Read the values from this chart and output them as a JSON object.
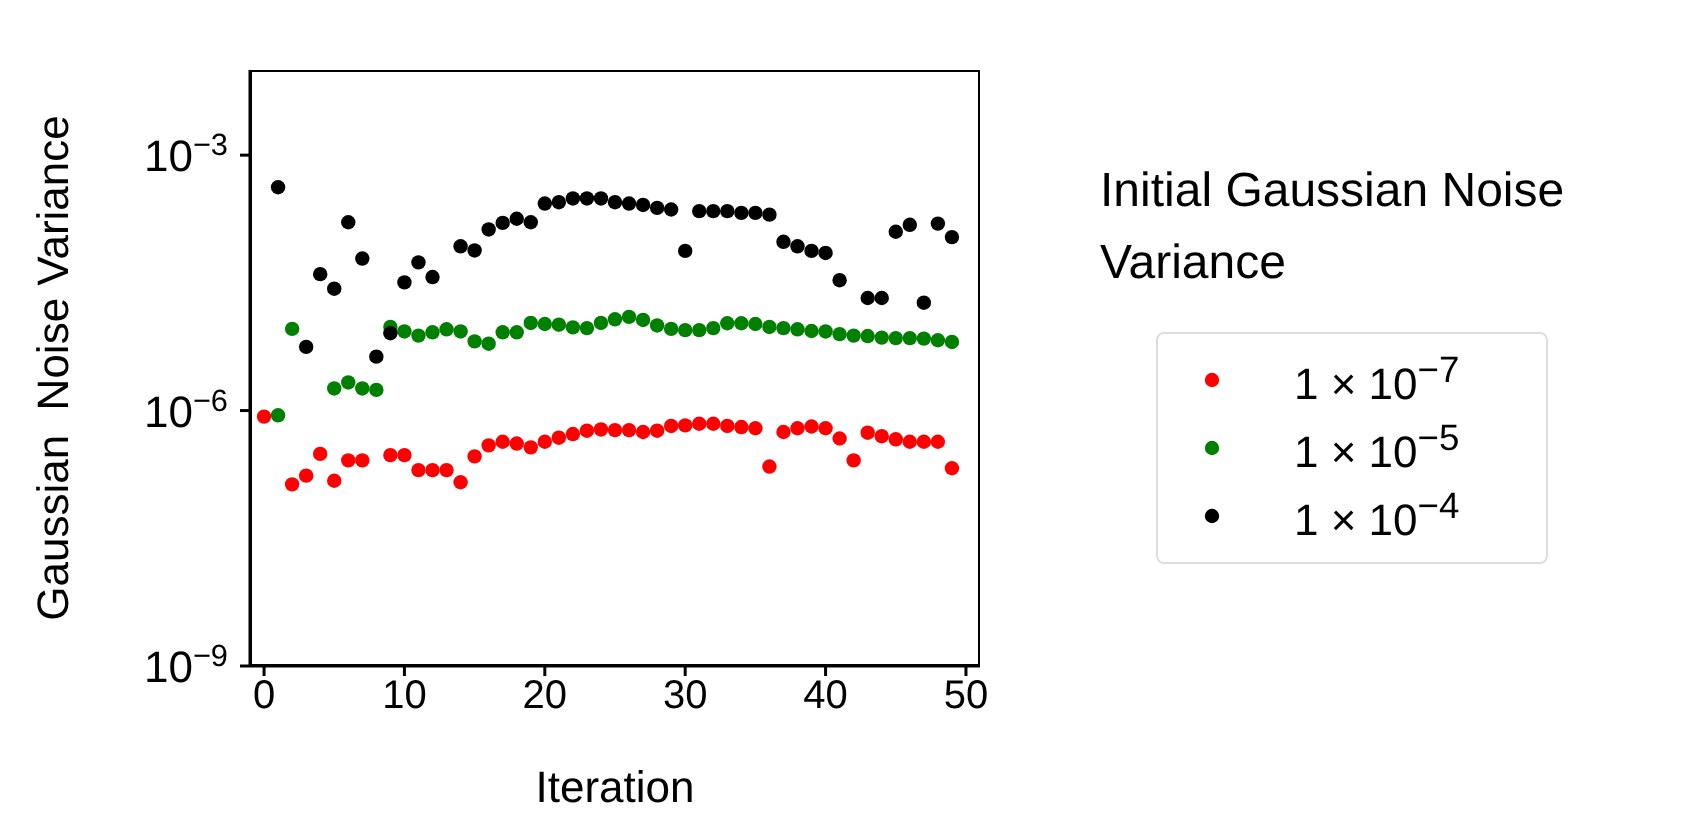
{
  "chart_data": {
    "type": "scatter",
    "xlabel": "Iteration",
    "ylabel": "Gaussian  Noise Variance",
    "legend_title": "Initial Gaussian Noise Variance",
    "legend": "right",
    "log": "y",
    "marker": "circle",
    "x": [
      0,
      1,
      2,
      3,
      4,
      5,
      6,
      7,
      8,
      9,
      10,
      11,
      12,
      13,
      14,
      15,
      16,
      17,
      18,
      19,
      20,
      21,
      22,
      23,
      24,
      25,
      26,
      27,
      28,
      29,
      30,
      31,
      32,
      33,
      34,
      35,
      36,
      37,
      38,
      39,
      40,
      41,
      42,
      43,
      44,
      45,
      46,
      47,
      48,
      49
    ],
    "xlim": [
      -1,
      51
    ],
    "xticks": [
      0,
      10,
      20,
      30,
      40,
      50
    ],
    "ylim": [
      1e-09,
      0.01
    ],
    "yticks": [
      {
        "value": 1e-09,
        "label": "10$^{−9}$"
      },
      {
        "value": 1e-06,
        "label": "10$^{−6}$"
      },
      {
        "value": 0.001,
        "label": "10$^{−3}$"
      }
    ],
    "series": [
      {
        "name": "1 × 10$^{−7}$",
        "color": "#ff0000",
        "values": [
          8.5e-07,
          null,
          1.36e-07,
          1.72e-07,
          3.1e-07,
          1.5e-07,
          2.6e-07,
          2.6e-07,
          null,
          3e-07,
          3e-07,
          2e-07,
          2e-07,
          2e-07,
          1.44e-07,
          2.9e-07,
          3.9e-07,
          4.3e-07,
          4.1e-07,
          3.7e-07,
          4.3e-07,
          4.8e-07,
          5.3e-07,
          5.8e-07,
          6e-07,
          5.9e-07,
          5.9e-07,
          5.6e-07,
          5.8e-07,
          6.6e-07,
          6.7e-07,
          7e-07,
          7e-07,
          6.6e-07,
          6.4e-07,
          6.2e-07,
          2.2e-07,
          5.6e-07,
          6.2e-07,
          6.5e-07,
          6.2e-07,
          4.7e-07,
          2.6e-07,
          5.5e-07,
          5e-07,
          4.6e-07,
          4.3e-07,
          4.3e-07,
          4.3e-07,
          2.1e-07
        ]
      },
      {
        "name": "1 × 10$^{−5}$",
        "color": "#008000",
        "values": [
          null,
          8.8e-07,
          9.1e-06,
          null,
          null,
          1.82e-06,
          2.14e-06,
          1.82e-06,
          1.75e-06,
          9.6e-06,
          8.5e-06,
          7.6e-06,
          8.3e-06,
          9e-06,
          8.5e-06,
          6.5e-06,
          6.1e-06,
          8.3e-06,
          8.3e-06,
          1.07e-05,
          1.04e-05,
          1.02e-05,
          9.5e-06,
          9.3e-06,
          1.07e-05,
          1.18e-05,
          1.26e-05,
          1.16e-05,
          1e-05,
          9.1e-06,
          8.8e-06,
          8.8e-06,
          9.3e-06,
          1.06e-05,
          1.06e-05,
          1.04e-05,
          9.6e-06,
          9.3e-06,
          9e-06,
          8.6e-06,
          8.5e-06,
          7.9e-06,
          7.6e-06,
          7.5e-06,
          7.2e-06,
          7.1e-06,
          7.1e-06,
          7e-06,
          6.7e-06,
          6.4e-06
        ]
      },
      {
        "name": "1 × 10$^{−4}$",
        "color": "#000000",
        "values": [
          null,
          0.00042,
          null,
          5.6e-06,
          4e-05,
          2.7e-05,
          0.000163,
          6.1e-05,
          4.3e-06,
          8.1e-06,
          3.2e-05,
          5.5e-05,
          3.7e-05,
          null,
          8.5e-05,
          7.6e-05,
          0.000134,
          0.00016,
          0.000179,
          0.000163,
          0.00027,
          0.00028,
          0.00031,
          0.00031,
          0.00031,
          0.00028,
          0.00027,
          0.00026,
          0.00024,
          0.00023,
          7.5e-05,
          0.00022,
          0.00022,
          0.00022,
          0.00021,
          0.00021,
          0.0002,
          9.6e-05,
          8.5e-05,
          7.5e-05,
          7.1e-05,
          3.4e-05,
          null,
          2.1e-05,
          2.1e-05,
          0.000126,
          0.000152,
          1.85e-05,
          0.000157,
          0.000109
        ]
      }
    ]
  }
}
